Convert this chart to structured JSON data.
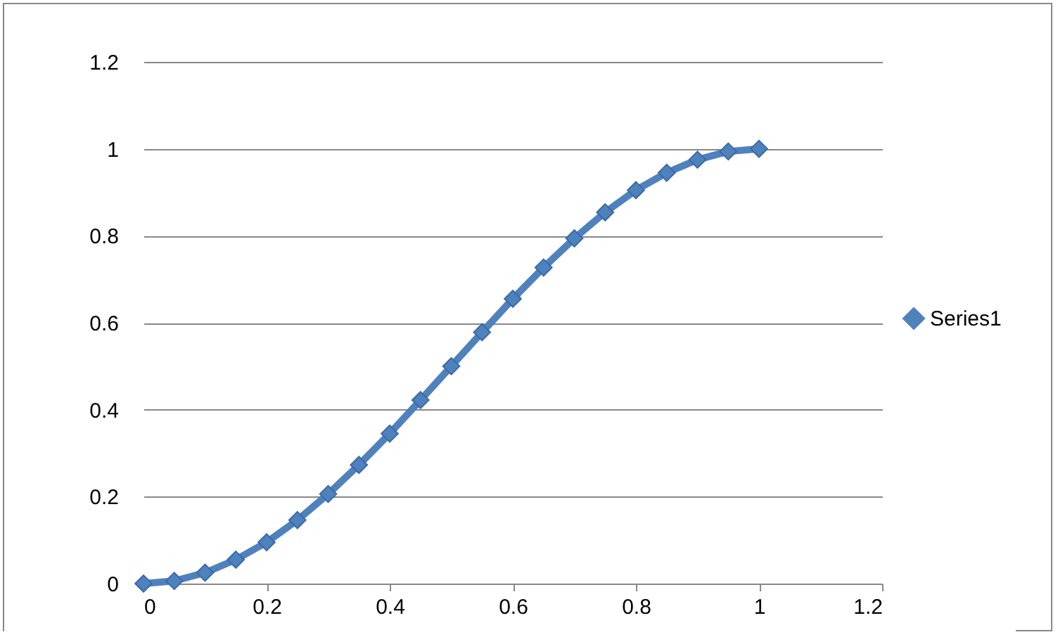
{
  "chart_data": {
    "type": "line",
    "xlim": [
      0,
      1.2
    ],
    "xticks": [
      0,
      0.2,
      0.4,
      0.6,
      0.8,
      1,
      1.2
    ],
    "ylim": [
      0,
      1.2
    ],
    "yticks": [
      0,
      0.2,
      0.4,
      0.6,
      0.8,
      1,
      1.2
    ],
    "grid": "y",
    "legend": "right",
    "marker": "diamond",
    "line_style": "solid",
    "series": [
      {
        "name": "Series1",
        "color": "#4f81bd",
        "x": [
          0,
          0.05,
          0.1,
          0.15,
          0.2,
          0.25,
          0.3,
          0.35,
          0.4,
          0.45,
          0.5,
          0.55,
          0.6,
          0.65,
          0.7,
          0.75,
          0.8,
          0.85,
          0.9,
          0.95,
          1
        ],
        "values": [
          0,
          0.006,
          0.025,
          0.055,
          0.095,
          0.146,
          0.206,
          0.273,
          0.345,
          0.422,
          0.5,
          0.578,
          0.655,
          0.727,
          0.794,
          0.854,
          0.905,
          0.945,
          0.975,
          0.994,
          1
        ]
      }
    ]
  }
}
